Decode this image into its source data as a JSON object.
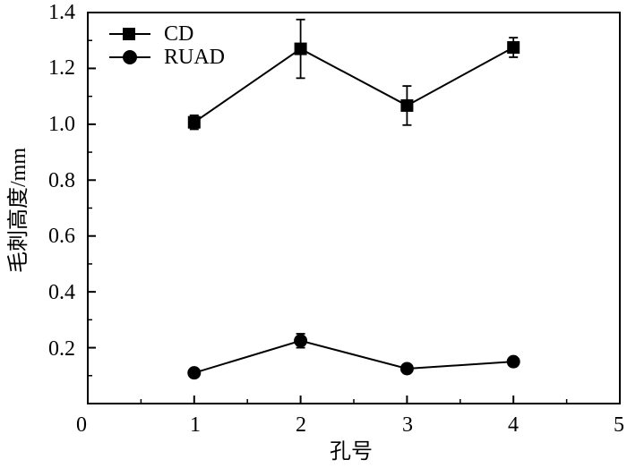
{
  "chart_data": {
    "type": "line",
    "xlabel": "孔号",
    "ylabel": "毛刺高度/mm",
    "xlim": [
      0,
      5
    ],
    "ylim": [
      0,
      1.4
    ],
    "x_ticks": [
      "0",
      "1",
      "2",
      "3",
      "4",
      "5"
    ],
    "y_ticks": [
      "0.2",
      "0.4",
      "0.6",
      "0.8",
      "1.0",
      "1.2",
      "1.4"
    ],
    "grid": false,
    "legend_position": "top-left",
    "series": [
      {
        "name": "CD",
        "marker": "square",
        "x": [
          1,
          2,
          3,
          4
        ],
        "y": [
          1.007,
          1.27,
          1.067,
          1.275
        ],
        "err": [
          0.025,
          0.105,
          0.07,
          0.035
        ]
      },
      {
        "name": "RUAD",
        "marker": "circle",
        "x": [
          1,
          2,
          3,
          4
        ],
        "y": [
          0.11,
          0.225,
          0.125,
          0.15
        ],
        "err": [
          0.0,
          0.025,
          0.0,
          0.0
        ]
      }
    ],
    "colors": {
      "line": "#000000",
      "marker": "#000000",
      "background": "#ffffff"
    }
  }
}
